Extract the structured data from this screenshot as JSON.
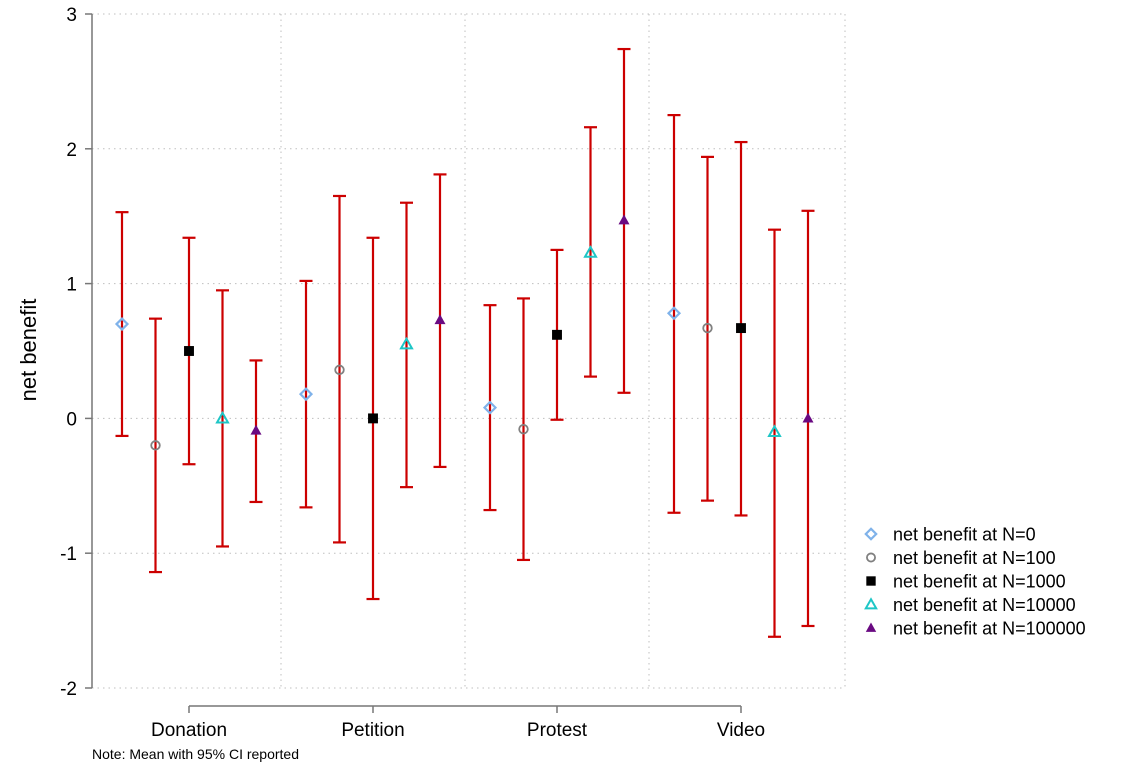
{
  "chart_data": {
    "type": "scatter",
    "subtype": "dot-with-error-bars",
    "ylabel": "net benefit",
    "xlabel": "",
    "note": "Note: Mean with 95% CI reported",
    "ylim": [
      -2,
      3
    ],
    "yticks": [
      -2,
      -1,
      0,
      1,
      2,
      3
    ],
    "categories": [
      "Donation",
      "Petition",
      "Protest",
      "Video"
    ],
    "grid": "dotted",
    "legend_position": "right",
    "error_bar_color": "#cc0000",
    "series": [
      {
        "name": "net benefit at N=0",
        "marker": "diamond-hollow",
        "color": "#7fb2ea",
        "values": [
          0.7,
          0.18,
          0.08,
          0.78
        ],
        "ci_low": [
          -0.13,
          -0.66,
          -0.68,
          -0.7
        ],
        "ci_high": [
          1.53,
          1.02,
          0.84,
          2.25
        ]
      },
      {
        "name": "net benefit at N=100",
        "marker": "circle-hollow",
        "color": "#808080",
        "values": [
          -0.2,
          0.36,
          -0.08,
          0.67
        ],
        "ci_low": [
          -1.14,
          -0.92,
          -1.05,
          -0.61
        ],
        "ci_high": [
          0.74,
          1.65,
          0.89,
          1.94
        ]
      },
      {
        "name": "net benefit at N=1000",
        "marker": "square",
        "color": "#000000",
        "values": [
          0.5,
          0.0,
          0.62,
          0.67
        ],
        "ci_low": [
          -0.34,
          -1.34,
          -0.01,
          -0.72
        ],
        "ci_high": [
          1.34,
          1.34,
          1.25,
          2.05
        ]
      },
      {
        "name": "net benefit at N=10000",
        "marker": "triangle-hollow",
        "color": "#1ec6c6",
        "values": [
          0.0,
          0.55,
          1.23,
          -0.1
        ],
        "ci_low": [
          -0.95,
          -0.51,
          0.31,
          -1.62
        ],
        "ci_high": [
          0.95,
          1.6,
          2.16,
          1.4
        ]
      },
      {
        "name": "net benefit at N=100000",
        "marker": "triangle",
        "color": "#6a0a82",
        "values": [
          -0.09,
          0.73,
          1.47,
          0.0
        ],
        "ci_low": [
          -0.62,
          -0.36,
          0.19,
          -1.54
        ],
        "ci_high": [
          0.43,
          1.81,
          2.74,
          1.54
        ]
      }
    ]
  }
}
